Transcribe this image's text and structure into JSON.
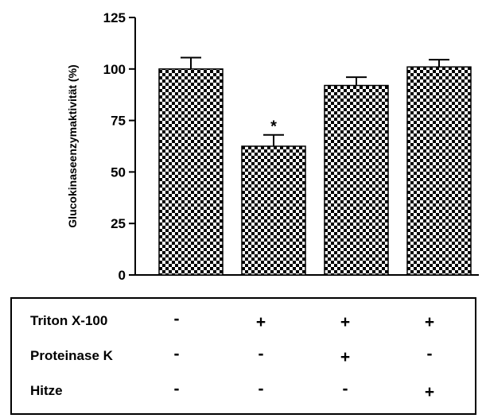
{
  "chart_data": {
    "type": "bar",
    "ylabel": "Glucokinaseenzymaktivität (%)",
    "ylim": [
      0,
      125
    ],
    "yticks": [
      "0",
      "25",
      "50",
      "75",
      "100",
      "125"
    ],
    "grid": false,
    "bar_fill": "checkerboard",
    "colors": {
      "bar_dark": "#000000",
      "bar_light": "#ffffff"
    },
    "categories": [
      "1",
      "2",
      "3",
      "4"
    ],
    "values": [
      100,
      62.5,
      92,
      101
    ],
    "errors": [
      5.5,
      5.5,
      4,
      3.5
    ],
    "annotations": [
      "",
      "*",
      "",
      ""
    ]
  },
  "conditions": {
    "rows": [
      {
        "label": "Triton X-100",
        "marks": [
          "-",
          "+",
          "+",
          "+"
        ]
      },
      {
        "label": "Proteinase K",
        "marks": [
          "-",
          "-",
          "+",
          "-"
        ]
      },
      {
        "label": "Hitze",
        "marks": [
          "-",
          "-",
          "-",
          "+"
        ]
      }
    ]
  }
}
